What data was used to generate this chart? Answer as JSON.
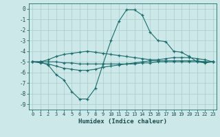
{
  "xlabel": "Humidex (Indice chaleur)",
  "background_color": "#cce8e8",
  "grid_color": "#aacccc",
  "line_color": "#1a6b6b",
  "xlim": [
    -0.5,
    23.5
  ],
  "ylim": [
    -9.5,
    0.5
  ],
  "yticks": [
    0,
    -1,
    -2,
    -3,
    -4,
    -5,
    -6,
    -7,
    -8,
    -9
  ],
  "xticks": [
    0,
    1,
    2,
    3,
    4,
    5,
    6,
    7,
    8,
    9,
    10,
    11,
    12,
    13,
    14,
    15,
    16,
    17,
    18,
    19,
    20,
    21,
    22,
    23
  ],
  "line1_x": [
    0,
    1,
    2,
    3,
    4,
    5,
    6,
    7,
    8,
    9,
    10,
    11,
    12,
    13,
    14,
    15,
    16,
    17,
    18,
    19,
    20,
    21,
    22,
    23
  ],
  "line1_y": [
    -5.0,
    -5.0,
    -5.3,
    -6.2,
    -6.7,
    -7.8,
    -8.5,
    -8.5,
    -7.5,
    -5.2,
    -3.0,
    -1.2,
    -0.1,
    -0.1,
    -0.6,
    -2.2,
    -3.0,
    -3.1,
    -4.0,
    -4.1,
    -4.5,
    -5.0,
    -5.1,
    -5.0
  ],
  "line2_x": [
    0,
    1,
    2,
    3,
    4,
    5,
    6,
    7,
    8,
    9,
    10,
    11,
    12,
    13,
    14,
    15,
    16,
    17,
    18,
    19,
    20,
    21,
    22,
    23
  ],
  "line2_y": [
    -5.0,
    -5.0,
    -4.8,
    -4.5,
    -4.3,
    -4.2,
    -4.1,
    -4.0,
    -4.1,
    -4.2,
    -4.3,
    -4.4,
    -4.5,
    -4.6,
    -4.7,
    -4.8,
    -4.8,
    -4.7,
    -4.6,
    -4.6,
    -4.6,
    -4.7,
    -4.8,
    -5.0
  ],
  "line3_x": [
    0,
    1,
    2,
    3,
    4,
    5,
    6,
    7,
    8,
    9,
    10,
    11,
    12,
    13,
    14,
    15,
    16,
    17,
    18,
    19,
    20,
    21,
    22,
    23
  ],
  "line3_y": [
    -5.0,
    -5.0,
    -5.0,
    -5.0,
    -5.1,
    -5.1,
    -5.2,
    -5.2,
    -5.2,
    -5.2,
    -5.2,
    -5.2,
    -5.2,
    -5.2,
    -5.1,
    -5.1,
    -5.0,
    -5.0,
    -5.0,
    -5.0,
    -5.0,
    -5.0,
    -5.0,
    -5.0
  ],
  "line4_x": [
    0,
    1,
    2,
    3,
    4,
    5,
    6,
    7,
    8,
    9,
    10,
    11,
    12,
    13,
    14,
    15,
    16,
    17,
    18,
    19,
    20,
    21,
    22,
    23
  ],
  "line4_y": [
    -5.0,
    -5.1,
    -5.2,
    -5.4,
    -5.6,
    -5.7,
    -5.8,
    -5.8,
    -5.7,
    -5.5,
    -5.4,
    -5.3,
    -5.2,
    -5.1,
    -5.0,
    -4.9,
    -4.9,
    -4.9,
    -4.9,
    -4.9,
    -4.9,
    -4.9,
    -5.0,
    -5.0
  ]
}
